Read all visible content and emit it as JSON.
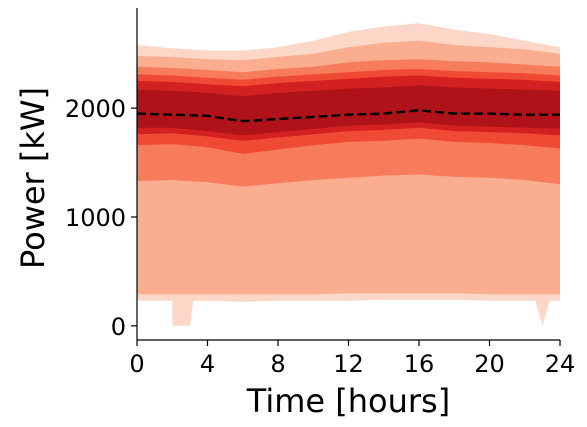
{
  "chart_data": {
    "type": "area",
    "title": "",
    "xlabel": "Time [hours]",
    "ylabel": "Power [kW]",
    "xlim": [
      0,
      24
    ],
    "ylim": [
      -130,
      2920
    ],
    "xticks": [
      0,
      4,
      8,
      12,
      16,
      20,
      24
    ],
    "yticks": [
      0,
      1000,
      2000
    ],
    "grid": false,
    "legend": "none",
    "x": [
      0,
      2,
      4,
      6,
      8,
      10,
      12,
      14,
      16,
      18,
      20,
      22,
      24
    ],
    "bands": [
      {
        "color": "#fcd6c6",
        "upper": [
          2580,
          2550,
          2530,
          2530,
          2560,
          2620,
          2700,
          2750,
          2780,
          2720,
          2680,
          2620,
          2560
        ],
        "lower": [
          230,
          230,
          230,
          220,
          230,
          230,
          230,
          240,
          240,
          240,
          230,
          230,
          230
        ],
        "dips": [
          {
            "x": [
              1.8,
              2.0,
              3.0,
              3.2
            ],
            "y": [
              230,
              0,
              0,
              230
            ]
          },
          {
            "x": [
              22.6,
              23.0,
              23.4
            ],
            "y": [
              230,
              0,
              230
            ]
          }
        ]
      },
      {
        "color": "#fbad90",
        "upper": [
          2480,
          2470,
          2450,
          2440,
          2470,
          2500,
          2560,
          2600,
          2620,
          2580,
          2560,
          2540,
          2500
        ],
        "lower": [
          290,
          290,
          290,
          290,
          290,
          290,
          300,
          300,
          300,
          300,
          290,
          290,
          290
        ]
      },
      {
        "color": "#f67c5c",
        "upper": [
          2380,
          2370,
          2350,
          2330,
          2360,
          2380,
          2420,
          2440,
          2450,
          2430,
          2420,
          2400,
          2380
        ],
        "lower": [
          1330,
          1340,
          1320,
          1280,
          1310,
          1340,
          1360,
          1380,
          1390,
          1370,
          1360,
          1340,
          1300
        ]
      },
      {
        "color": "#f14a34",
        "upper": [
          2310,
          2300,
          2280,
          2260,
          2290,
          2310,
          2330,
          2350,
          2360,
          2340,
          2330,
          2320,
          2300
        ],
        "lower": [
          1660,
          1670,
          1640,
          1580,
          1620,
          1660,
          1690,
          1700,
          1720,
          1690,
          1680,
          1660,
          1630
        ]
      },
      {
        "color": "#d32020",
        "upper": [
          2250,
          2240,
          2220,
          2200,
          2230,
          2250,
          2270,
          2290,
          2300,
          2280,
          2270,
          2260,
          2240
        ],
        "lower": [
          1760,
          1770,
          1740,
          1700,
          1730,
          1760,
          1790,
          1800,
          1820,
          1790,
          1780,
          1770,
          1750
        ]
      },
      {
        "color": "#af1319",
        "upper": [
          2170,
          2160,
          2140,
          2110,
          2140,
          2160,
          2180,
          2190,
          2210,
          2190,
          2180,
          2170,
          2160
        ],
        "lower": [
          1820,
          1820,
          1790,
          1750,
          1780,
          1810,
          1840,
          1850,
          1870,
          1840,
          1830,
          1820,
          1810
        ]
      }
    ],
    "series": [
      {
        "style": "dashed",
        "color": "#000000",
        "values": [
          1950,
          1940,
          1930,
          1880,
          1900,
          1920,
          1940,
          1950,
          1980,
          1950,
          1950,
          1940,
          1940
        ]
      }
    ]
  }
}
